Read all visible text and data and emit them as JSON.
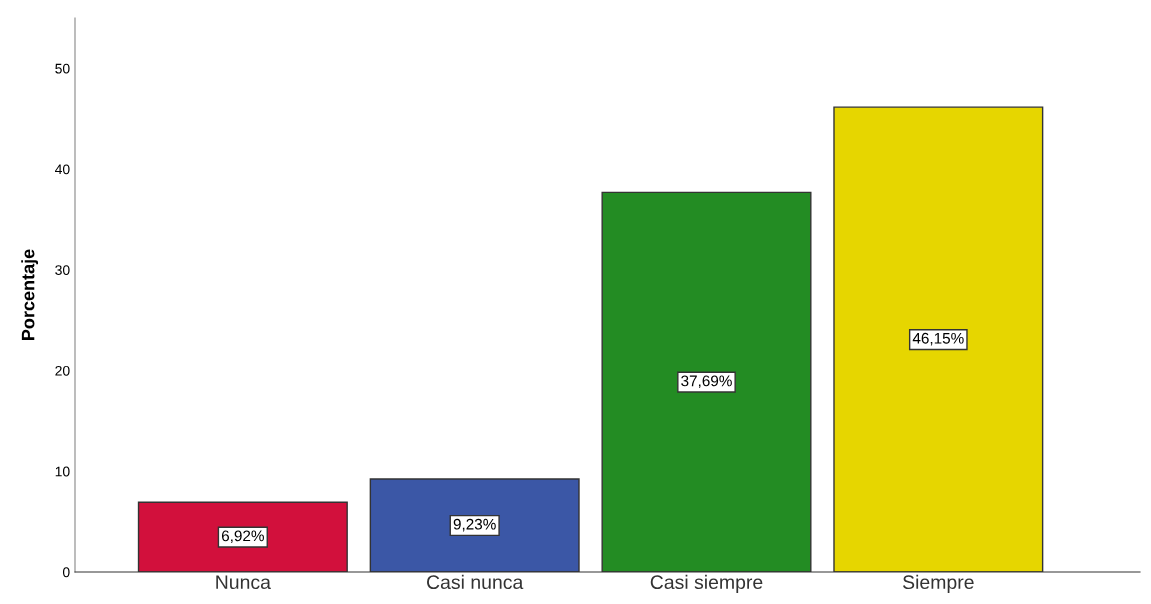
{
  "chart_data": {
    "type": "bar",
    "ylabel": "Porcentaje",
    "categories": [
      "Nunca",
      "Casi nunca",
      "Casi siempre",
      "Siempre"
    ],
    "values": [
      6.92,
      9.23,
      37.69,
      46.15
    ],
    "colors": [
      "#d2103c",
      "#3b57a6",
      "#238c23",
      "#e6d600"
    ],
    "value_labels": [
      "6,92%",
      "9,23%",
      "37,69%",
      "46,15%"
    ],
    "ylim": [
      0,
      55
    ],
    "yticks": [
      0,
      10,
      20,
      30,
      40,
      50
    ],
    "grid": false,
    "legend": false
  }
}
